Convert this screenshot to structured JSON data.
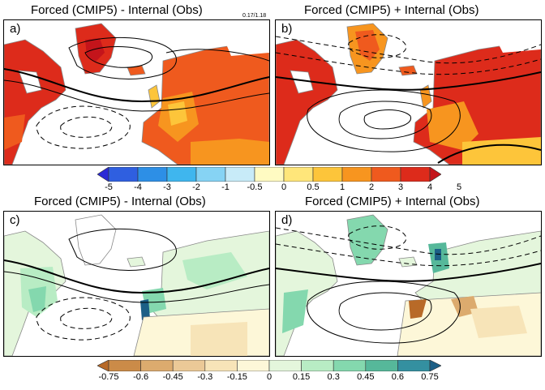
{
  "panels": [
    {
      "letter": "a)",
      "title": "Forced (CMIP5) - Internal (Obs)",
      "stats": "0.17/1.18"
    },
    {
      "letter": "b)",
      "title": "Forced (CMIP5) + Internal (Obs)"
    },
    {
      "letter": "c)",
      "title": "Forced (CMIP5) - Internal (Obs)"
    },
    {
      "letter": "d)",
      "title": "Forced (CMIP5) + Internal (Obs)"
    }
  ],
  "colorbar_temperature": {
    "labels": [
      "-5",
      "-4",
      "-3",
      "-2",
      "-1",
      "-0.5",
      "0",
      "0.5",
      "1",
      "2",
      "3",
      "4",
      "5"
    ],
    "colors": [
      "#2a2ad6",
      "#2f5fe0",
      "#2d8fe6",
      "#3fb6ee",
      "#86d3f4",
      "#c8ebf8",
      "#fffbc2",
      "#ffe67a",
      "#fdc53a",
      "#f7951f",
      "#ef5a1e",
      "#dd2b1b",
      "#c4141b"
    ]
  },
  "colorbar_precipitation": {
    "labels": [
      "-0.75",
      "-0.6",
      "-0.45",
      "-0.3",
      "-0.15",
      "0",
      "0.15",
      "0.3",
      "0.45",
      "0.6",
      "0.75"
    ],
    "colors": [
      "#b86a28",
      "#cb8b48",
      "#dcab6e",
      "#ebc997",
      "#f7e4b8",
      "#fdf7d8",
      "#e4f6dc",
      "#b8ecc4",
      "#84d8ae",
      "#56b89a",
      "#3490a0",
      "#1c5f86"
    ]
  }
}
